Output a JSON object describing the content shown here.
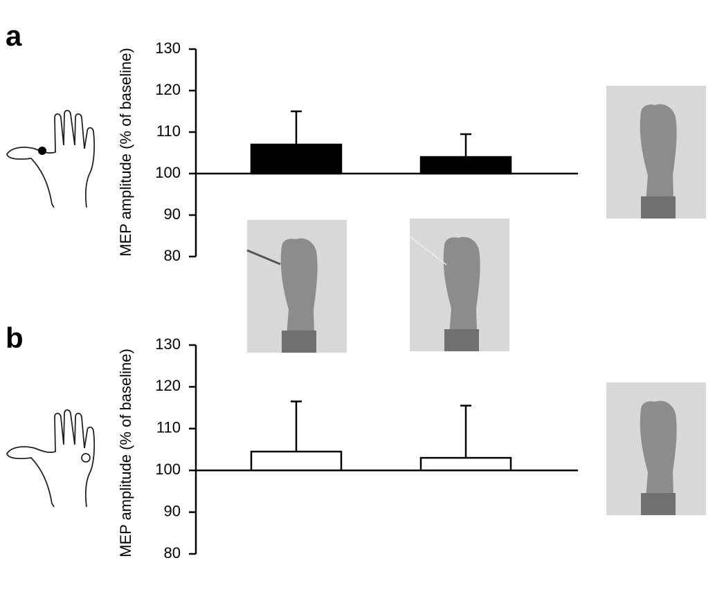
{
  "chart_data": [
    {
      "type": "bar",
      "label": "a",
      "y_label": "MEP amplitude (% of baseline)",
      "categories": [
        null,
        null
      ],
      "values": [
        107,
        104
      ],
      "errors": [
        8,
        5.5
      ],
      "color": "#000000",
      "bar_base": 100,
      "ylim": [
        80,
        130
      ],
      "yticks": [
        80,
        90,
        100,
        110,
        120,
        130
      ]
    },
    {
      "type": "bar",
      "label": "b",
      "y_label": "MEP amplitude (% of baseline)",
      "categories": [
        null,
        null
      ],
      "values": [
        104.5,
        103
      ],
      "errors": [
        12,
        12.5
      ],
      "color": "#ffffff",
      "bar_base": 100,
      "ylim": [
        80,
        130
      ],
      "yticks": [
        80,
        90,
        100,
        110,
        120,
        130
      ]
    }
  ]
}
